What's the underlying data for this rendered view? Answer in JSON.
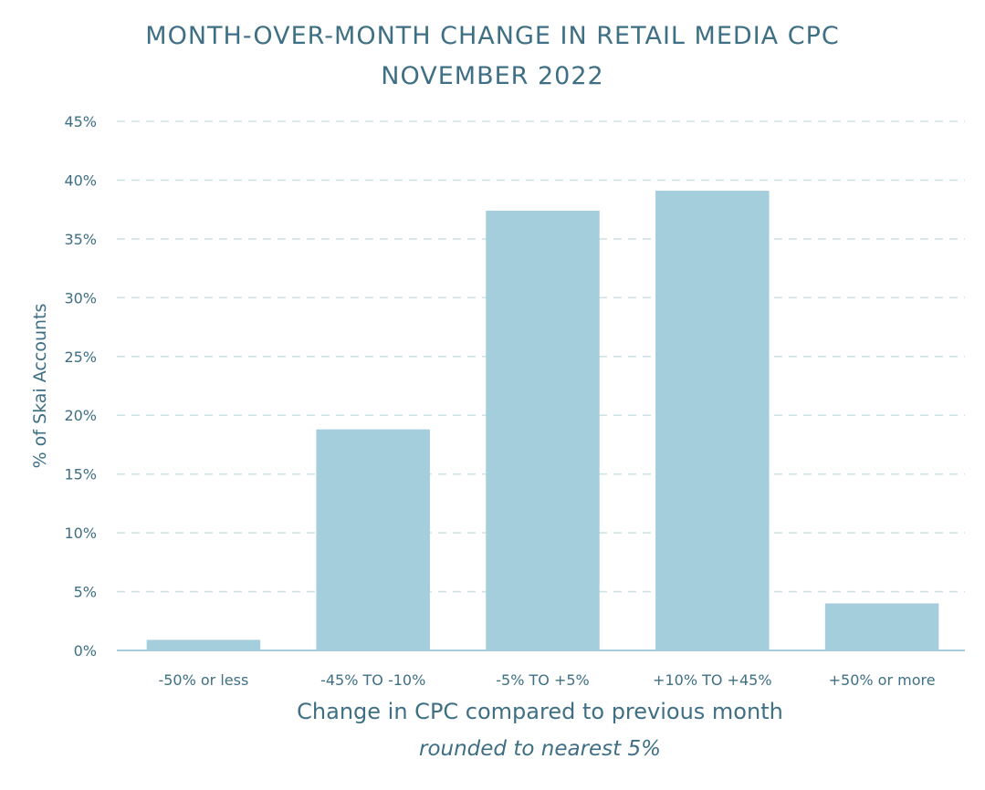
{
  "chart_data": {
    "type": "bar",
    "title_line1": "MONTH-OVER-MONTH CHANGE IN RETAIL MEDIA CPC",
    "title_line2": "NOVEMBER 2022",
    "xlabel": "Change in CPC compared to previous month",
    "xlabel_sub": "rounded to nearest 5%",
    "ylabel": "% of Skai Accounts",
    "categories": [
      "-50% or less",
      "-45% TO -10%",
      "-5% TO +5%",
      "+10% TO +45%",
      "+50% or more"
    ],
    "values": [
      0.9,
      18.8,
      37.4,
      39.1,
      4.0
    ],
    "ylim": [
      0,
      45
    ],
    "yticks": [
      0,
      5,
      10,
      15,
      20,
      25,
      30,
      35,
      40,
      45
    ],
    "ytick_labels": [
      "0%",
      "5%",
      "10%",
      "15%",
      "20%",
      "25%",
      "30%",
      "35%",
      "40%",
      "45%"
    ],
    "grid": true,
    "colors": {
      "bar": "#a5cedc",
      "grid": "#cfe3e6",
      "axis": "#a5cedc",
      "text": "#3f6f84"
    }
  }
}
